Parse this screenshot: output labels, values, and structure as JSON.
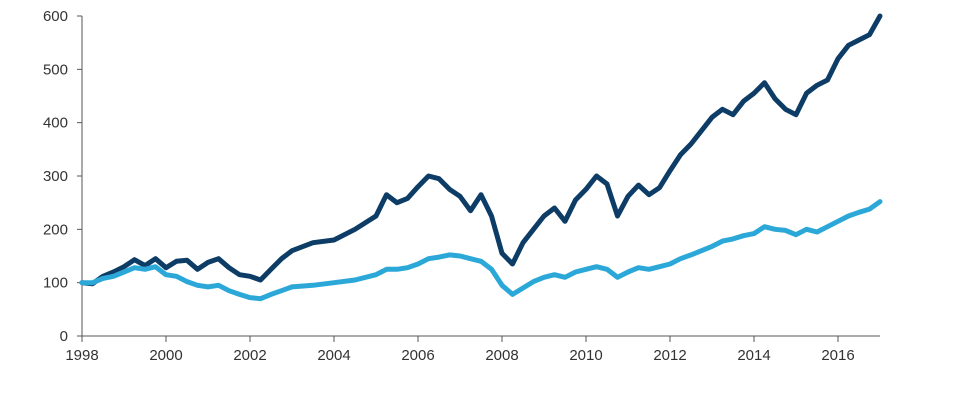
{
  "chart_data": {
    "type": "line",
    "title": "",
    "xlabel": "",
    "ylabel": "",
    "xlim": [
      1998,
      2017
    ],
    "ylim": [
      0,
      600
    ],
    "x_ticks": [
      1998,
      2000,
      2002,
      2004,
      2006,
      2008,
      2010,
      2012,
      2014,
      2016
    ],
    "y_ticks": [
      0,
      100,
      200,
      300,
      400,
      500,
      600
    ],
    "grid": false,
    "series": [
      {
        "color": "#0d3d66",
        "x": [
          1998.0,
          1998.25,
          1998.5,
          1998.75,
          1999.0,
          1999.25,
          1999.5,
          1999.75,
          2000.0,
          2000.25,
          2000.5,
          2000.75,
          2001.0,
          2001.25,
          2001.5,
          2001.75,
          2002.0,
          2002.25,
          2002.5,
          2002.75,
          2003.0,
          2003.5,
          2004.0,
          2004.5,
          2005.0,
          2005.25,
          2005.5,
          2005.75,
          2006.0,
          2006.25,
          2006.5,
          2006.75,
          2007.0,
          2007.25,
          2007.5,
          2007.75,
          2008.0,
          2008.25,
          2008.5,
          2008.75,
          2009.0,
          2009.25,
          2009.5,
          2009.75,
          2010.0,
          2010.25,
          2010.5,
          2010.75,
          2011.0,
          2011.25,
          2011.5,
          2011.75,
          2012.0,
          2012.25,
          2012.5,
          2012.75,
          2013.0,
          2013.25,
          2013.5,
          2013.75,
          2014.0,
          2014.25,
          2014.5,
          2014.75,
          2015.0,
          2015.25,
          2015.5,
          2015.75,
          2016.0,
          2016.25,
          2016.5,
          2016.75,
          2017.0
        ],
        "values": [
          100,
          98,
          112,
          120,
          130,
          143,
          132,
          145,
          128,
          140,
          142,
          125,
          138,
          145,
          128,
          115,
          112,
          105,
          125,
          145,
          160,
          175,
          180,
          200,
          225,
          265,
          250,
          258,
          280,
          300,
          295,
          275,
          262,
          235,
          265,
          225,
          155,
          135,
          175,
          200,
          225,
          240,
          215,
          255,
          275,
          300,
          285,
          225,
          262,
          283,
          265,
          278,
          310,
          340,
          360,
          385,
          410,
          425,
          415,
          440,
          455,
          475,
          445,
          425,
          415,
          455,
          470,
          480,
          520,
          545,
          555,
          565,
          600
        ]
      },
      {
        "color": "#2ba8d8",
        "x": [
          1998.0,
          1998.25,
          1998.5,
          1998.75,
          1999.0,
          1999.25,
          1999.5,
          1999.75,
          2000.0,
          2000.25,
          2000.5,
          2000.75,
          2001.0,
          2001.25,
          2001.5,
          2001.75,
          2002.0,
          2002.25,
          2002.5,
          2002.75,
          2003.0,
          2003.5,
          2004.0,
          2004.5,
          2005.0,
          2005.25,
          2005.5,
          2005.75,
          2006.0,
          2006.25,
          2006.5,
          2006.75,
          2007.0,
          2007.25,
          2007.5,
          2007.75,
          2008.0,
          2008.25,
          2008.5,
          2008.75,
          2009.0,
          2009.25,
          2009.5,
          2009.75,
          2010.0,
          2010.25,
          2010.5,
          2010.75,
          2011.0,
          2011.25,
          2011.5,
          2011.75,
          2012.0,
          2012.25,
          2012.5,
          2012.75,
          2013.0,
          2013.25,
          2013.5,
          2013.75,
          2014.0,
          2014.25,
          2014.5,
          2014.75,
          2015.0,
          2015.25,
          2015.5,
          2015.75,
          2016.0,
          2016.25,
          2016.5,
          2016.75,
          2017.0
        ],
        "values": [
          100,
          100,
          108,
          112,
          120,
          128,
          125,
          130,
          115,
          112,
          102,
          95,
          92,
          95,
          85,
          78,
          72,
          70,
          78,
          85,
          92,
          95,
          100,
          105,
          115,
          125,
          125,
          128,
          135,
          145,
          148,
          152,
          150,
          145,
          140,
          125,
          95,
          78,
          90,
          102,
          110,
          115,
          110,
          120,
          125,
          130,
          125,
          110,
          120,
          128,
          125,
          130,
          135,
          145,
          152,
          160,
          168,
          178,
          182,
          188,
          192,
          205,
          200,
          198,
          190,
          200,
          195,
          205,
          215,
          225,
          232,
          238,
          252
        ]
      }
    ]
  }
}
